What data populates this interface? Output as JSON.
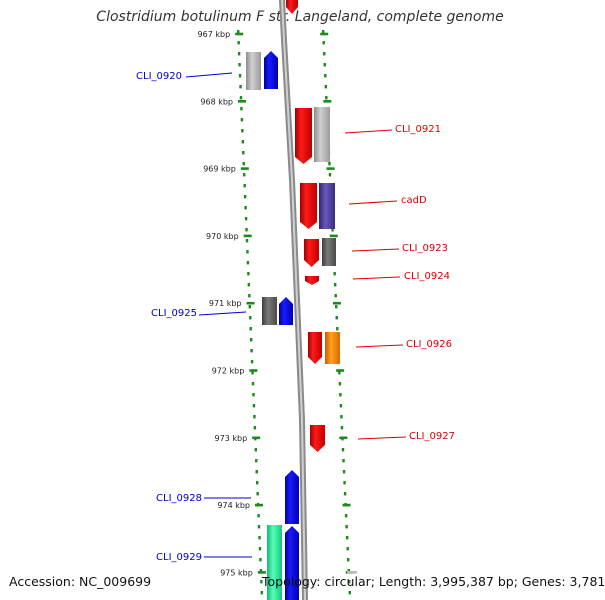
{
  "title": "Clostridium botulinum F str. Langeland, complete genome",
  "footer": {
    "accession": "Accession: NC_009699",
    "topology": "Topology: circular; Length: 3,995,387 bp; Genes: 3,781"
  },
  "colors": {
    "forward_strand": "#ff0000",
    "reverse_strand": "#0000ff",
    "grey": "#bbbbbb",
    "dark_grey": "#666666",
    "purple": "#55449a",
    "orange": "#ff8800",
    "green": "#22ee99",
    "tick": "#1a8a1a",
    "backbone": "#999999"
  },
  "ticks": [
    {
      "label": "967 kbp",
      "kbp": 967
    },
    {
      "label": "968 kbp",
      "kbp": 968
    },
    {
      "label": "969 kbp",
      "kbp": 969
    },
    {
      "label": "970 kbp",
      "kbp": 970
    },
    {
      "label": "971 kbp",
      "kbp": 971
    },
    {
      "label": "972 kbp",
      "kbp": 972
    },
    {
      "label": "973 kbp",
      "kbp": 973
    },
    {
      "label": "974 kbp",
      "kbp": 974
    },
    {
      "label": "975 kbp",
      "kbp": 975
    }
  ],
  "labels": [
    {
      "text": "CLI_0920",
      "strand": "reverse"
    },
    {
      "text": "CLI_0921",
      "strand": "forward"
    },
    {
      "text": "cadD",
      "strand": "forward"
    },
    {
      "text": "CLI_0923",
      "strand": "forward"
    },
    {
      "text": "CLI_0924",
      "strand": "forward"
    },
    {
      "text": "CLI_0925",
      "strand": "reverse"
    },
    {
      "text": "CLI_0926",
      "strand": "forward"
    },
    {
      "text": "CLI_0927",
      "strand": "forward"
    },
    {
      "text": "CLI_0928",
      "strand": "reverse"
    },
    {
      "text": "CLI_0929",
      "strand": "reverse"
    }
  ]
}
